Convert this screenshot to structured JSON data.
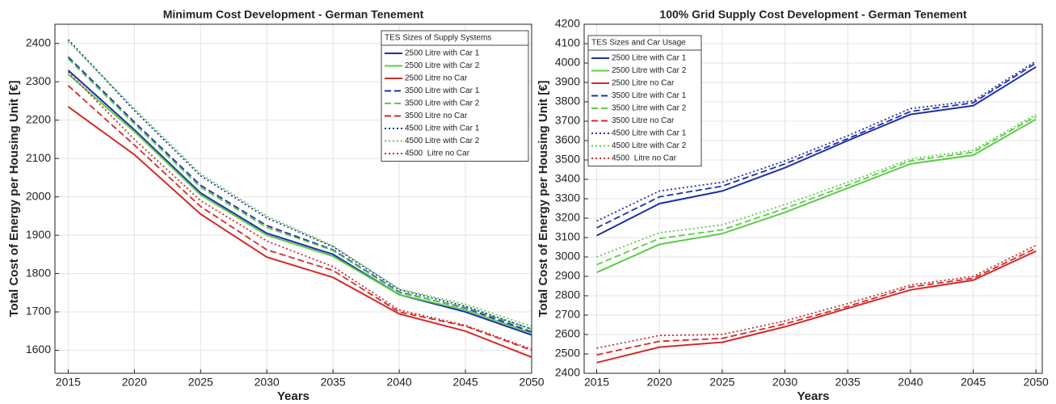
{
  "chart_data": [
    {
      "type": "line",
      "title": "Minimum Cost Development - German Tenement",
      "xlabel": "Years",
      "ylabel": "Total Cost of Energy per Housing Unit [€]",
      "x": [
        2015,
        2020,
        2025,
        2030,
        2035,
        2040,
        2045,
        2050
      ],
      "xlim": [
        2014,
        2050
      ],
      "xticks": [
        2015,
        2020,
        2025,
        2030,
        2035,
        2040,
        2045,
        2050
      ],
      "ylim": [
        1540,
        2450
      ],
      "yticks": [
        1600,
        1700,
        1800,
        1900,
        2000,
        2100,
        2200,
        2300,
        2400
      ],
      "grid": true,
      "legend_title": "TES Sizes of Supply Systems",
      "legend": "upper right",
      "series": [
        {
          "name": "2500 Litre with Car 1",
          "color": "#1f2fa8",
          "style": "solid",
          "values": [
            2330,
            2175,
            2010,
            1905,
            1850,
            1745,
            1700,
            1640
          ]
        },
        {
          "name": "2500 Litre with Car 2",
          "color": "#5ecb4a",
          "style": "solid",
          "values": [
            2320,
            2170,
            2005,
            1900,
            1845,
            1745,
            1705,
            1645
          ]
        },
        {
          "name": "2500 Litre no Car",
          "color": "#d42a2a",
          "style": "solid",
          "values": [
            2235,
            2110,
            1955,
            1843,
            1790,
            1695,
            1650,
            1582
          ]
        },
        {
          "name": "3500 Litre with Car 1",
          "color": "#1f2fa8",
          "style": "dashed",
          "values": [
            2365,
            2195,
            2030,
            1925,
            1862,
            1752,
            1710,
            1648
          ]
        },
        {
          "name": "3500 Litre with Car 2",
          "color": "#5ecb4a",
          "style": "dashed",
          "values": [
            2360,
            2190,
            2025,
            1920,
            1860,
            1750,
            1712,
            1655
          ]
        },
        {
          "name": "3500 Litre no Car",
          "color": "#d42a2a",
          "style": "dashed",
          "values": [
            2290,
            2135,
            1975,
            1862,
            1808,
            1700,
            1663,
            1600
          ]
        },
        {
          "name": "4500 Litre with Car 1",
          "color": "#1f2fa8",
          "style": "dotted",
          "values": [
            2410,
            2225,
            2055,
            1945,
            1870,
            1758,
            1715,
            1655
          ]
        },
        {
          "name": "4500 Litre with Car 2",
          "color": "#5ecb4a",
          "style": "dotted",
          "values": [
            2405,
            2230,
            2060,
            1950,
            1872,
            1760,
            1720,
            1662
          ]
        },
        {
          "name": "4500  Litre no Car",
          "color": "#d42a2a",
          "style": "dotted",
          "values": [
            2325,
            2150,
            1990,
            1885,
            1818,
            1705,
            1665,
            1603
          ]
        }
      ]
    },
    {
      "type": "line",
      "title": "100% Grid Supply Cost Development - German Tenement",
      "xlabel": "Years",
      "ylabel": "Total Cost of Energy per Housing Unit [€]",
      "x": [
        2015,
        2020,
        2025,
        2030,
        2035,
        2040,
        2045,
        2050
      ],
      "xlim": [
        2014,
        2050.5
      ],
      "xticks": [
        2015,
        2020,
        2025,
        2030,
        2035,
        2040,
        2045,
        2050
      ],
      "ylim": [
        2400,
        4200
      ],
      "yticks": [
        2400,
        2500,
        2600,
        2700,
        2800,
        2900,
        3000,
        3100,
        3200,
        3300,
        3400,
        3500,
        3600,
        3700,
        3800,
        3900,
        4000,
        4100,
        4200
      ],
      "grid": true,
      "legend_title": "TES Sizes and Car Usage",
      "legend": "upper left",
      "series": [
        {
          "name": "2500 Litre with Car 1",
          "color": "#1f2fa8",
          "style": "solid",
          "values": [
            3110,
            3275,
            3340,
            3460,
            3600,
            3735,
            3780,
            3980
          ]
        },
        {
          "name": "2500 Litre with Car 2",
          "color": "#5ecb4a",
          "style": "solid",
          "values": [
            2920,
            3065,
            3120,
            3230,
            3355,
            3480,
            3525,
            3710
          ]
        },
        {
          "name": "2500 Litre no Car",
          "color": "#d42a2a",
          "style": "solid",
          "values": [
            2455,
            2535,
            2560,
            2640,
            2735,
            2830,
            2880,
            3030
          ]
        },
        {
          "name": "3500 Litre with Car 1",
          "color": "#1f2fa8",
          "style": "dashed",
          "values": [
            3150,
            3310,
            3365,
            3480,
            3610,
            3750,
            3795,
            4000
          ]
        },
        {
          "name": "3500 Litre with Car 2",
          "color": "#5ecb4a",
          "style": "dashed",
          "values": [
            2960,
            3095,
            3140,
            3250,
            3370,
            3495,
            3540,
            3725
          ]
        },
        {
          "name": "3500 Litre no Car",
          "color": "#d42a2a",
          "style": "dashed",
          "values": [
            2495,
            2565,
            2580,
            2655,
            2745,
            2845,
            2890,
            3045
          ]
        },
        {
          "name": "4500 Litre with Car 1",
          "color": "#1f2fa8",
          "style": "dotted",
          "values": [
            3185,
            3340,
            3385,
            3495,
            3625,
            3765,
            3805,
            4010
          ]
        },
        {
          "name": "4500 Litre with Car 2",
          "color": "#5ecb4a",
          "style": "dotted",
          "values": [
            3000,
            3125,
            3165,
            3270,
            3385,
            3505,
            3550,
            3735
          ]
        },
        {
          "name": "4500  Litre no Car",
          "color": "#d42a2a",
          "style": "dotted",
          "values": [
            2530,
            2595,
            2600,
            2670,
            2760,
            2855,
            2900,
            3060
          ]
        }
      ]
    }
  ]
}
